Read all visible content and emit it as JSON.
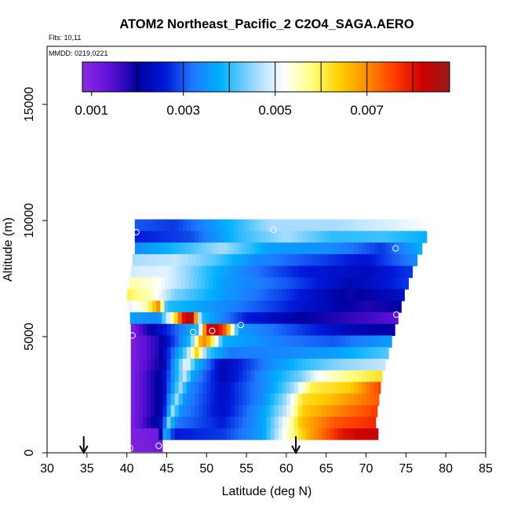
{
  "chart_data": {
    "type": "heatmap",
    "title": "ATOM2 Northeast_Pacific_2 C2O4_SAGA.AERO",
    "flights_label": "Flts: 10,11",
    "date_label": "MMDD: 0219,0221",
    "xlabel": "Latitude (deg N)",
    "ylabel": "Altitude (m)",
    "xlim": [
      30,
      85
    ],
    "ylim": [
      0,
      17500
    ],
    "x_ticks": [
      30,
      35,
      40,
      45,
      50,
      55,
      60,
      65,
      70,
      75,
      80,
      85
    ],
    "y_ticks": [
      0,
      5000,
      10000,
      15000
    ],
    "colorbar": {
      "range": [
        0.0008,
        0.0088
      ],
      "tick_values": [
        0.001,
        0.003,
        0.005,
        0.007
      ],
      "tick_labels": [
        "0.001",
        "0.003",
        "0.005",
        "0.007"
      ],
      "boundaries": [
        0.002,
        0.003,
        0.004,
        0.005,
        0.006,
        0.007,
        0.008
      ],
      "color_stops": [
        {
          "v": 0.0008,
          "c": "#8a2be2"
        },
        {
          "v": 0.0014,
          "c": "#6010d8"
        },
        {
          "v": 0.002,
          "c": "#0000a0"
        },
        {
          "v": 0.0026,
          "c": "#0018d8"
        },
        {
          "v": 0.0032,
          "c": "#1e78ff"
        },
        {
          "v": 0.0038,
          "c": "#00b0ff"
        },
        {
          "v": 0.0046,
          "c": "#a8dcff"
        },
        {
          "v": 0.0052,
          "c": "#ffffff"
        },
        {
          "v": 0.0058,
          "c": "#ffff80"
        },
        {
          "v": 0.0064,
          "c": "#ffd000"
        },
        {
          "v": 0.007,
          "c": "#ff8c00"
        },
        {
          "v": 0.0076,
          "c": "#ff3c00"
        },
        {
          "v": 0.0082,
          "c": "#d00000"
        },
        {
          "v": 0.0088,
          "c": "#9a1a1a"
        }
      ]
    },
    "sample_points": [
      {
        "lat": 40.4,
        "alt": 200
      },
      {
        "lat": 44.0,
        "alt": 300
      },
      {
        "lat": 71.0,
        "alt": 400
      },
      {
        "lat": 40.7,
        "alt": 5050
      },
      {
        "lat": 48.3,
        "alt": 5200
      },
      {
        "lat": 50.7,
        "alt": 5250
      },
      {
        "lat": 54.3,
        "alt": 5500
      },
      {
        "lat": 73.8,
        "alt": 5950
      },
      {
        "lat": 73.7,
        "alt": 8800
      },
      {
        "lat": 41.2,
        "alt": 9500
      },
      {
        "lat": 58.4,
        "alt": 9600
      },
      {
        "lat": 78.0,
        "alt": 9550
      }
    ],
    "flight_markers": [
      {
        "lat": 34.6
      },
      {
        "lat": 61.2
      }
    ],
    "curtain_rows": [
      {
        "alt": 9800,
        "lat_min": 41.0,
        "lat_max": 78.4,
        "stops": [
          [
            41.0,
            0.003
          ],
          [
            46.0,
            0.0028
          ],
          [
            52.0,
            0.0037
          ],
          [
            58.0,
            0.0046
          ],
          [
            66.0,
            0.0046
          ],
          [
            72.0,
            0.0049
          ],
          [
            78.4,
            0.0052
          ]
        ]
      },
      {
        "alt": 9300,
        "lat_min": 41.0,
        "lat_max": 77.6,
        "stops": [
          [
            41.0,
            0.0026
          ],
          [
            48.0,
            0.0029
          ],
          [
            54.0,
            0.004
          ],
          [
            60.0,
            0.0046
          ],
          [
            66.0,
            0.004
          ],
          [
            72.0,
            0.0041
          ],
          [
            77.6,
            0.0038
          ]
        ]
      },
      {
        "alt": 8800,
        "lat_min": 41.0,
        "lat_max": 77.0,
        "stops": [
          [
            41.0,
            0.0034
          ],
          [
            47.0,
            0.004
          ],
          [
            52.0,
            0.0046
          ],
          [
            58.0,
            0.0036
          ],
          [
            66.0,
            0.0034
          ],
          [
            72.0,
            0.0028
          ],
          [
            77.0,
            0.0038
          ]
        ]
      },
      {
        "alt": 8300,
        "lat_min": 40.7,
        "lat_max": 76.4,
        "stops": [
          [
            40.7,
            0.0046
          ],
          [
            46.0,
            0.0048
          ],
          [
            51.0,
            0.0042
          ],
          [
            56.0,
            0.0034
          ],
          [
            62.0,
            0.003
          ],
          [
            70.0,
            0.0025
          ],
          [
            76.4,
            0.0034
          ]
        ]
      },
      {
        "alt": 7800,
        "lat_min": 40.5,
        "lat_max": 75.8,
        "stops": [
          [
            40.5,
            0.0049
          ],
          [
            45.0,
            0.005
          ],
          [
            50.0,
            0.004
          ],
          [
            55.0,
            0.0033
          ],
          [
            62.0,
            0.0026
          ],
          [
            70.0,
            0.0023
          ],
          [
            75.8,
            0.0028
          ]
        ]
      },
      {
        "alt": 7300,
        "lat_min": 40.3,
        "lat_max": 75.3,
        "stops": [
          [
            40.3,
            0.0056
          ],
          [
            43.0,
            0.0054
          ],
          [
            47.0,
            0.0046
          ],
          [
            52.0,
            0.0036
          ],
          [
            60.0,
            0.003
          ],
          [
            68.0,
            0.0022
          ],
          [
            75.3,
            0.0028
          ]
        ]
      },
      {
        "alt": 6800,
        "lat_min": 40.0,
        "lat_max": 74.8,
        "stops": [
          [
            40.0,
            0.006
          ],
          [
            43.0,
            0.0055
          ],
          [
            46.0,
            0.0044
          ],
          [
            52.0,
            0.0036
          ],
          [
            60.0,
            0.0028
          ],
          [
            68.0,
            0.0019
          ],
          [
            74.8,
            0.0024
          ]
        ]
      },
      {
        "alt": 6300,
        "lat_min": 40.2,
        "lat_max": 74.4,
        "stops": [
          [
            40.2,
            0.005
          ],
          [
            42.5,
            0.0056
          ],
          [
            44.0,
            0.007
          ],
          [
            45.0,
            0.004
          ],
          [
            52.0,
            0.0034
          ],
          [
            62.0,
            0.0025
          ],
          [
            70.0,
            0.0018
          ],
          [
            74.4,
            0.002
          ]
        ]
      },
      {
        "alt": 5800,
        "lat_min": 40.4,
        "lat_max": 74.0,
        "stops": [
          [
            40.4,
            0.0036
          ],
          [
            44.0,
            0.0034
          ],
          [
            46.0,
            0.006
          ],
          [
            47.0,
            0.008
          ],
          [
            48.3,
            0.0085
          ],
          [
            49.3,
            0.004
          ],
          [
            55.0,
            0.0026
          ],
          [
            62.0,
            0.002
          ],
          [
            70.0,
            0.0016
          ],
          [
            74.0,
            0.0014
          ]
        ]
      },
      {
        "alt": 5300,
        "lat_min": 40.5,
        "lat_max": 73.6,
        "stops": [
          [
            40.5,
            0.001
          ],
          [
            43.0,
            0.002
          ],
          [
            49.0,
            0.004
          ],
          [
            50.0,
            0.008
          ],
          [
            51.0,
            0.0086
          ],
          [
            52.5,
            0.0072
          ],
          [
            54.0,
            0.0036
          ],
          [
            60.0,
            0.003
          ],
          [
            68.0,
            0.0022
          ],
          [
            73.6,
            0.002
          ]
        ]
      },
      {
        "alt": 4800,
        "lat_min": 40.5,
        "lat_max": 73.2,
        "stops": [
          [
            40.5,
            0.001
          ],
          [
            44.0,
            0.0018
          ],
          [
            48.0,
            0.004
          ],
          [
            49.5,
            0.0072
          ],
          [
            50.5,
            0.0064
          ],
          [
            52.0,
            0.0038
          ],
          [
            60.0,
            0.0032
          ],
          [
            66.0,
            0.003
          ],
          [
            73.2,
            0.0036
          ]
        ]
      },
      {
        "alt": 4300,
        "lat_min": 40.5,
        "lat_max": 72.8,
        "stops": [
          [
            40.5,
            0.001
          ],
          [
            44.0,
            0.0018
          ],
          [
            47.5,
            0.0044
          ],
          [
            48.8,
            0.0064
          ],
          [
            50.0,
            0.0042
          ],
          [
            53.0,
            0.0032
          ],
          [
            60.0,
            0.0034
          ],
          [
            66.0,
            0.0036
          ],
          [
            72.8,
            0.0042
          ]
        ]
      },
      {
        "alt": 3800,
        "lat_min": 40.5,
        "lat_max": 72.4,
        "stops": [
          [
            40.5,
            0.001
          ],
          [
            44.5,
            0.002
          ],
          [
            47.5,
            0.0052
          ],
          [
            48.5,
            0.004
          ],
          [
            52.0,
            0.0022
          ],
          [
            58.0,
            0.0034
          ],
          [
            62.0,
            0.004
          ],
          [
            66.0,
            0.0044
          ],
          [
            72.4,
            0.0048
          ]
        ]
      },
      {
        "alt": 3300,
        "lat_min": 40.5,
        "lat_max": 72.0,
        "stops": [
          [
            40.5,
            0.001
          ],
          [
            44.5,
            0.0022
          ],
          [
            47.2,
            0.0048
          ],
          [
            48.3,
            0.0036
          ],
          [
            52.0,
            0.0022
          ],
          [
            58.0,
            0.0036
          ],
          [
            62.0,
            0.0044
          ],
          [
            64.0,
            0.0052
          ],
          [
            68.0,
            0.0058
          ],
          [
            72.0,
            0.0062
          ]
        ]
      },
      {
        "alt": 2800,
        "lat_min": 40.5,
        "lat_max": 71.8,
        "stops": [
          [
            40.5,
            0.001
          ],
          [
            44.5,
            0.0022
          ],
          [
            46.7,
            0.0046
          ],
          [
            47.8,
            0.0034
          ],
          [
            52.0,
            0.0024
          ],
          [
            58.0,
            0.0036
          ],
          [
            61.0,
            0.0046
          ],
          [
            63.0,
            0.006
          ],
          [
            68.0,
            0.0064
          ],
          [
            71.8,
            0.0076
          ]
        ]
      },
      {
        "alt": 2300,
        "lat_min": 40.5,
        "lat_max": 71.6,
        "stops": [
          [
            40.5,
            0.001
          ],
          [
            44.5,
            0.0022
          ],
          [
            46.2,
            0.0046
          ],
          [
            47.3,
            0.0034
          ],
          [
            52.0,
            0.0024
          ],
          [
            57.0,
            0.0034
          ],
          [
            60.0,
            0.0046
          ],
          [
            62.0,
            0.0062
          ],
          [
            66.0,
            0.0066
          ],
          [
            71.6,
            0.0074
          ]
        ]
      },
      {
        "alt": 1800,
        "lat_min": 40.5,
        "lat_max": 71.4,
        "stops": [
          [
            40.5,
            0.001
          ],
          [
            44.5,
            0.0022
          ],
          [
            45.7,
            0.0046
          ],
          [
            46.8,
            0.0034
          ],
          [
            52.0,
            0.0024
          ],
          [
            57.0,
            0.0036
          ],
          [
            60.0,
            0.0048
          ],
          [
            62.0,
            0.0064
          ],
          [
            66.0,
            0.007
          ],
          [
            71.4,
            0.0076
          ]
        ]
      },
      {
        "alt": 1300,
        "lat_min": 40.5,
        "lat_max": 71.2,
        "stops": [
          [
            40.5,
            0.001
          ],
          [
            44.5,
            0.0024
          ],
          [
            45.2,
            0.0044
          ],
          [
            46.3,
            0.0032
          ],
          [
            52.0,
            0.0026
          ],
          [
            57.0,
            0.0036
          ],
          [
            60.0,
            0.0052
          ],
          [
            62.0,
            0.0066
          ],
          [
            66.0,
            0.0074
          ],
          [
            71.2,
            0.0078
          ]
        ]
      },
      {
        "alt": 800,
        "lat_min": 40.5,
        "lat_max": 71.5,
        "stops": [
          [
            40.5,
            0.001
          ],
          [
            44.0,
            0.0012
          ],
          [
            44.8,
            0.0038
          ],
          [
            46.0,
            0.0026
          ],
          [
            52.0,
            0.0028
          ],
          [
            57.0,
            0.0036
          ],
          [
            60.0,
            0.0054
          ],
          [
            63.0,
            0.0068
          ],
          [
            67.0,
            0.008
          ],
          [
            71.5,
            0.0084
          ]
        ]
      },
      {
        "alt": 300,
        "lat_min": 40.5,
        "lat_max": 45.0,
        "stops": [
          [
            40.5,
            0.001
          ],
          [
            45.0,
            0.0012
          ]
        ]
      },
      {
        "alt": 300,
        "lat_min": 44.5,
        "lat_max": 71.5,
        "stops": [
          [
            44.5,
            0.0052
          ],
          [
            71.5,
            0.0052
          ]
        ]
      }
    ]
  }
}
